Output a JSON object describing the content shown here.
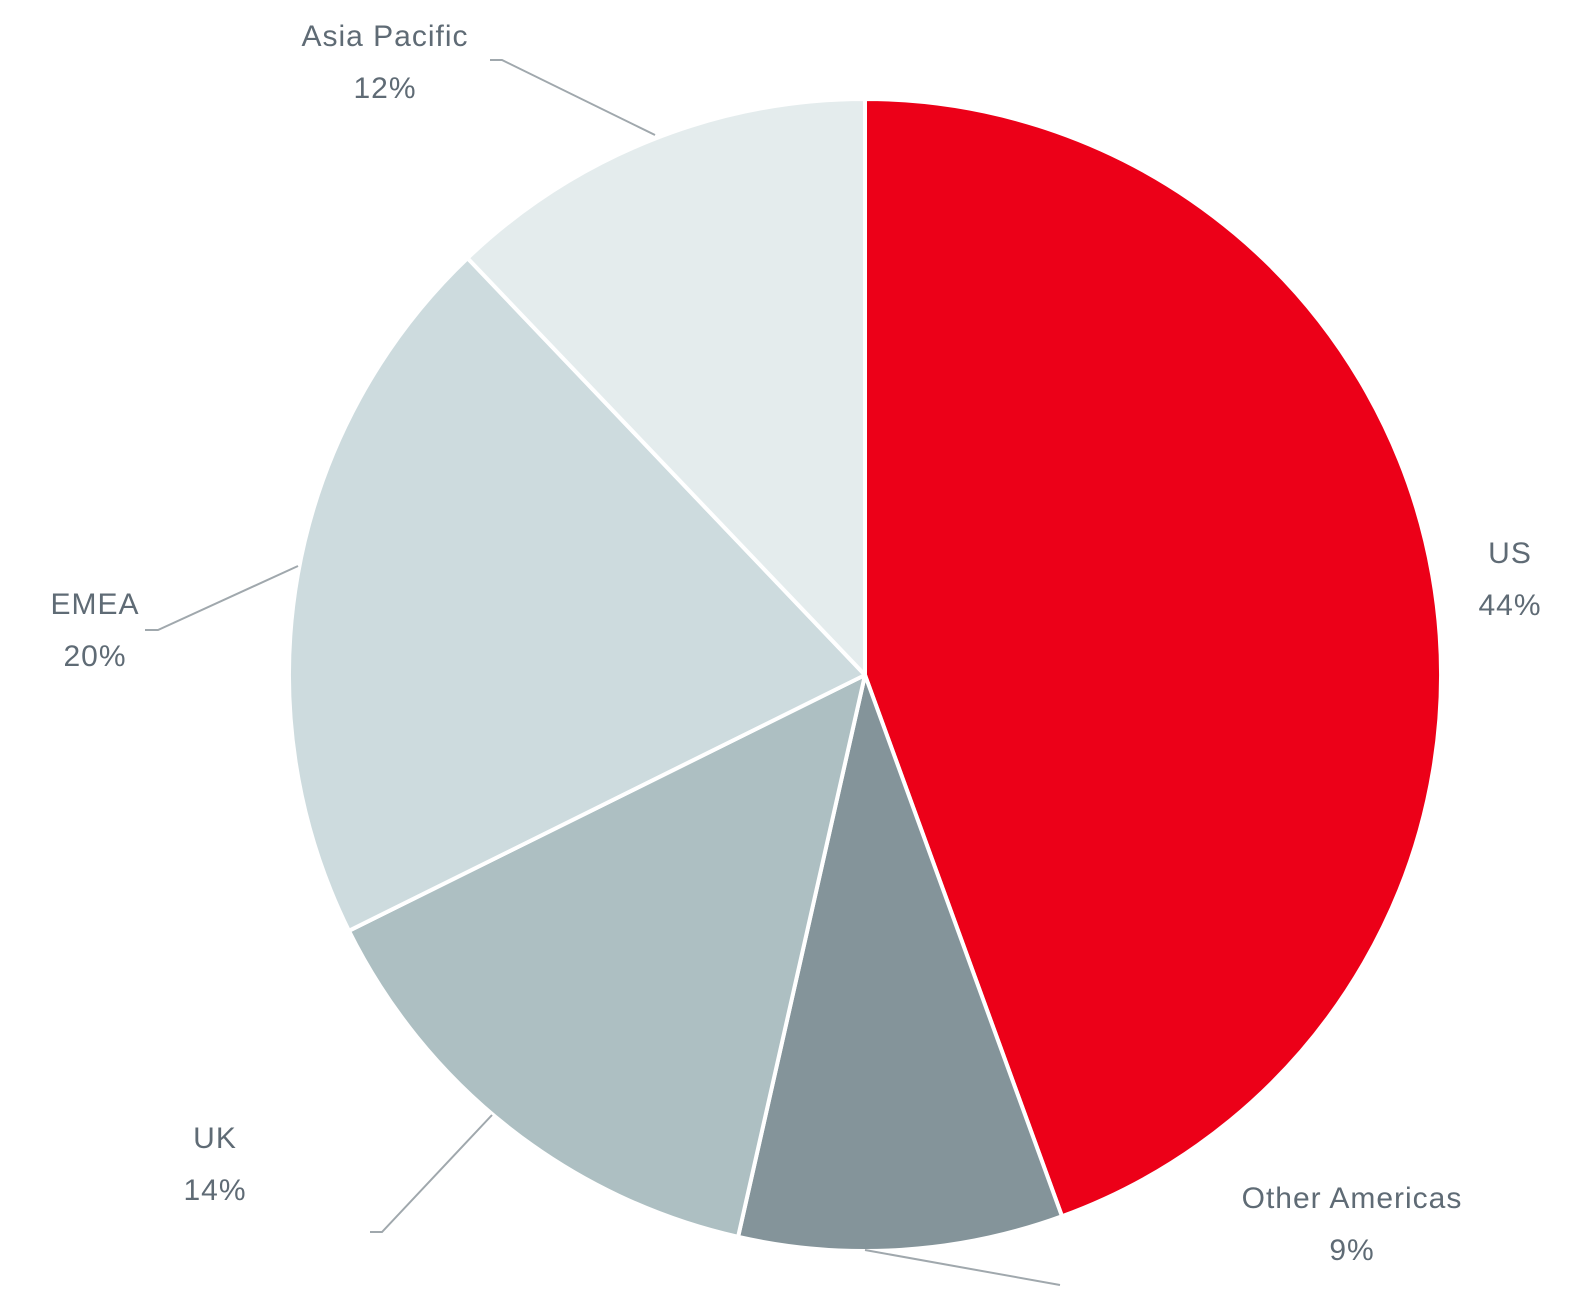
{
  "chart_data": {
    "type": "pie",
    "categories": [
      "US",
      "Other Americas",
      "UK",
      "EMEA",
      "Asia Pacific"
    ],
    "values": [
      44,
      9,
      14,
      20,
      12
    ],
    "value_labels": [
      "44%",
      "9%",
      "14%",
      "20%",
      "12%"
    ],
    "colors": [
      "#ec0018",
      "#84949a",
      "#adbfc2",
      "#cddbde",
      "#e4eced"
    ]
  }
}
